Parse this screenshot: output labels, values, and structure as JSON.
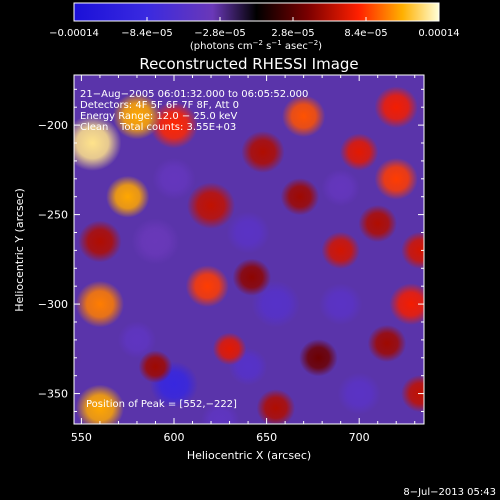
{
  "chart_data": {
    "type": "heatmap",
    "title": "Reconstructed RHESSI Image",
    "xlabel": "Heliocentric X (arcsec)",
    "ylabel": "Heliocentric Y (arcsec)",
    "xlim": [
      546,
      735
    ],
    "ylim": [
      -367,
      -172
    ],
    "x_ticks": [
      550,
      600,
      650,
      700
    ],
    "x_tick_labels": [
      "550",
      "600",
      "650",
      "700"
    ],
    "y_ticks": [
      -200,
      -250,
      -300,
      -350
    ],
    "y_tick_labels": [
      "−200",
      "−250",
      "−300",
      "−350"
    ],
    "colorbar": {
      "range": [
        -0.00014,
        0.00014
      ],
      "ticks": [
        -0.00014,
        -8.4e-05,
        -2.8e-05,
        2.8e-05,
        8.4e-05,
        0.00014
      ],
      "tick_labels": [
        "−0.00014",
        "−8.4e−05",
        "−2.8e−05",
        "2.8e−05",
        "8.4e−05",
        "0.00014"
      ],
      "units_prefix": "(photons cm",
      "units_exp1": "−2",
      "units_mid": " s",
      "units_exp2": "−1",
      "units_mid2": " asec",
      "units_exp3": "−2",
      "units_suffix": ")"
    },
    "annotations": {
      "time_range": "21−Aug−2005 06:01:32.000 to 06:05:52.000",
      "detectors": "Detectors: 4F 5F 6F 7F 8F, Att 0",
      "energy_range": "Energy Range: 12.0 − 25.0 keV",
      "method": "Clean",
      "total_counts": "Total counts: 3.55E+03",
      "peak_position": "Position of Peak = [552,−222]",
      "timestamp": "8−Jul−2013 05:43"
    },
    "sources": [
      {
        "x": 556,
        "y": -210,
        "v": 0.00013,
        "s": 12
      },
      {
        "x": 580,
        "y": -195,
        "v": 0.00011,
        "s": 10
      },
      {
        "x": 600,
        "y": -200,
        "v": 8e-05,
        "s": 10
      },
      {
        "x": 575,
        "y": -240,
        "v": 0.00011,
        "s": 9
      },
      {
        "x": 560,
        "y": -265,
        "v": 5.5e-05,
        "s": 9
      },
      {
        "x": 620,
        "y": -245,
        "v": 6e-05,
        "s": 10
      },
      {
        "x": 648,
        "y": -215,
        "v": 5.5e-05,
        "s": 9
      },
      {
        "x": 670,
        "y": -195,
        "v": 9e-05,
        "s": 9
      },
      {
        "x": 720,
        "y": -190,
        "v": 7.5e-05,
        "s": 9
      },
      {
        "x": 700,
        "y": -215,
        "v": 7e-05,
        "s": 8
      },
      {
        "x": 720,
        "y": -230,
        "v": 8.5e-05,
        "s": 9
      },
      {
        "x": 710,
        "y": -255,
        "v": 5.5e-05,
        "s": 8
      },
      {
        "x": 668,
        "y": -240,
        "v": 5e-05,
        "s": 8
      },
      {
        "x": 690,
        "y": -270,
        "v": 6.5e-05,
        "s": 8
      },
      {
        "x": 733,
        "y": -270,
        "v": 6.5e-05,
        "s": 8
      },
      {
        "x": 560,
        "y": -300,
        "v": 0.0001,
        "s": 10
      },
      {
        "x": 618,
        "y": -290,
        "v": 8.5e-05,
        "s": 9
      },
      {
        "x": 642,
        "y": -285,
        "v": 4.5e-05,
        "s": 8
      },
      {
        "x": 728,
        "y": -300,
        "v": 7.5e-05,
        "s": 9
      },
      {
        "x": 715,
        "y": -322,
        "v": 5e-05,
        "s": 8
      },
      {
        "x": 630,
        "y": -325,
        "v": 7e-05,
        "s": 7
      },
      {
        "x": 590,
        "y": -335,
        "v": 5e-05,
        "s": 7
      },
      {
        "x": 733,
        "y": -350,
        "v": 6e-05,
        "s": 8
      },
      {
        "x": 655,
        "y": -358,
        "v": 5.5e-05,
        "s": 8
      },
      {
        "x": 560,
        "y": -358,
        "v": 0.00011,
        "s": 10
      },
      {
        "x": 678,
        "y": -330,
        "v": 3.5e-05,
        "s": 8
      },
      {
        "x": 600,
        "y": -230,
        "v": -4e-05,
        "s": 9
      },
      {
        "x": 590,
        "y": -265,
        "v": -3.5e-05,
        "s": 10
      },
      {
        "x": 640,
        "y": -260,
        "v": -5e-05,
        "s": 9
      },
      {
        "x": 690,
        "y": -235,
        "v": -4e-05,
        "s": 8
      },
      {
        "x": 655,
        "y": -300,
        "v": -5.5e-05,
        "s": 10
      },
      {
        "x": 690,
        "y": -300,
        "v": -5e-05,
        "s": 9
      },
      {
        "x": 600,
        "y": -345,
        "v": -9e-05,
        "s": 10
      },
      {
        "x": 640,
        "y": -335,
        "v": -5.5e-05,
        "s": 8
      },
      {
        "x": 580,
        "y": -320,
        "v": -4.5e-05,
        "s": 8
      },
      {
        "x": 700,
        "y": -350,
        "v": -5e-05,
        "s": 9
      },
      {
        "x": 625,
        "y": -365,
        "v": -4.5e-05,
        "s": 8
      },
      {
        "x": 740,
        "y": -190,
        "v": -3e-05,
        "s": 8
      },
      {
        "x": 540,
        "y": -330,
        "v": -3e-05,
        "s": 8
      }
    ]
  }
}
